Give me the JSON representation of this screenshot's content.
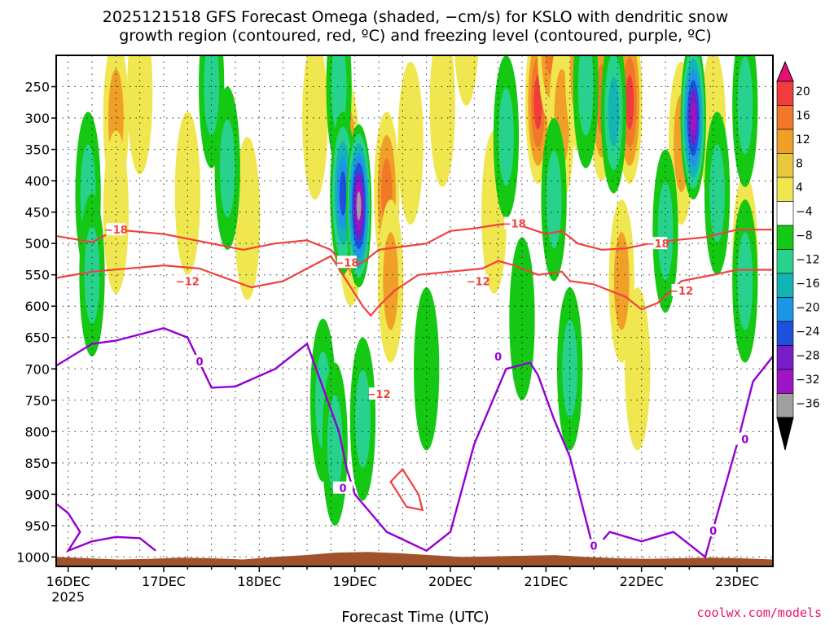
{
  "chart_data": {
    "type": "heatmap",
    "title_line1": "2025121518 GFS Forecast Omega (shaded, −cm/s) for KSLO with dendritic snow",
    "title_line2": "growth region (contoured, red, ºC) and freezing level (contoured, purple, ºC)",
    "xlabel": "Forecast Time (UTC)",
    "credit": "coolwx.com/models",
    "x_ticks": [
      {
        "label": "16DEC",
        "sub": "2025",
        "value": 0
      },
      {
        "label": "17DEC",
        "sub": "",
        "value": 24
      },
      {
        "label": "18DEC",
        "sub": "",
        "value": 48
      },
      {
        "label": "19DEC",
        "sub": "",
        "value": 72
      },
      {
        "label": "20DEC",
        "sub": "",
        "value": 96
      },
      {
        "label": "21DEC",
        "sub": "",
        "value": 120
      },
      {
        "label": "22DEC",
        "sub": "",
        "value": 144
      },
      {
        "label": "23DEC",
        "sub": "",
        "value": 168
      }
    ],
    "x_range": [
      -3,
      177
    ],
    "y_ticks": [
      "250",
      "300",
      "350",
      "400",
      "450",
      "500",
      "550",
      "600",
      "650",
      "700",
      "750",
      "800",
      "850",
      "900",
      "950",
      "1000"
    ],
    "y_range": [
      200,
      1015
    ],
    "colorbar": {
      "labels": [
        "20",
        "16",
        "12",
        "8",
        "4",
        "−4",
        "−8",
        "−12",
        "−16",
        "−20",
        "−24",
        "−28",
        "−32",
        "−36"
      ],
      "colors": [
        "#e8106e",
        "#f03c3c",
        "#f07828",
        "#f0a028",
        "#e8c83c",
        "#f0e650",
        "#ffffff",
        "#14c814",
        "#28d28c",
        "#14b4b4",
        "#1e96e6",
        "#1e50dc",
        "#781ec8",
        "#a014c8",
        "#a0a0a0",
        "#000000"
      ]
    },
    "omega_cells": [
      {
        "t": 12,
        "p": 300,
        "v": 10
      },
      {
        "t": 12,
        "p": 450,
        "v": 6
      },
      {
        "t": 18,
        "p": 260,
        "v": 6
      },
      {
        "t": 30,
        "p": 420,
        "v": 6
      },
      {
        "t": 45,
        "p": 460,
        "v": 6
      },
      {
        "t": 62,
        "p": 300,
        "v": 6
      },
      {
        "t": 70,
        "p": 370,
        "v": 14
      },
      {
        "t": 71,
        "p": 470,
        "v": 10
      },
      {
        "t": 80,
        "p": 420,
        "v": 12
      },
      {
        "t": 81,
        "p": 560,
        "v": 8
      },
      {
        "t": 86,
        "p": 340,
        "v": 6
      },
      {
        "t": 94,
        "p": 280,
        "v": 6
      },
      {
        "t": 100,
        "p": 150,
        "v": 6
      },
      {
        "t": 107,
        "p": 450,
        "v": 6
      },
      {
        "t": 118,
        "p": 275,
        "v": 18
      },
      {
        "t": 121,
        "p": 175,
        "v": 12
      },
      {
        "t": 124,
        "p": 300,
        "v": 10
      },
      {
        "t": 128,
        "p": 220,
        "v": 8
      },
      {
        "t": 134,
        "p": 270,
        "v": 12
      },
      {
        "t": 139,
        "p": 560,
        "v": 10
      },
      {
        "t": 141,
        "p": 275,
        "v": 18
      },
      {
        "t": 143,
        "p": 700,
        "v": 6
      },
      {
        "t": 150,
        "p": 480,
        "v": 8
      },
      {
        "t": 154,
        "p": 340,
        "v": 10
      },
      {
        "t": 162,
        "p": 320,
        "v": 6
      },
      {
        "t": 170,
        "p": 520,
        "v": 6
      },
      {
        "t": 5,
        "p": 420,
        "v": -8
      },
      {
        "t": 6,
        "p": 550,
        "v": -10
      },
      {
        "t": 36,
        "p": 250,
        "v": -8
      },
      {
        "t": 40,
        "p": 380,
        "v": -10
      },
      {
        "t": 64,
        "p": 750,
        "v": -10
      },
      {
        "t": 67,
        "p": 820,
        "v": -8
      },
      {
        "t": 68,
        "p": 250,
        "v": -8
      },
      {
        "t": 69,
        "p": 420,
        "v": -20
      },
      {
        "t": 73,
        "p": 440,
        "v": -34
      },
      {
        "t": 74,
        "p": 780,
        "v": -8
      },
      {
        "t": 90,
        "p": 700,
        "v": -6
      },
      {
        "t": 110,
        "p": 330,
        "v": -10
      },
      {
        "t": 114,
        "p": 620,
        "v": -6
      },
      {
        "t": 122,
        "p": 430,
        "v": -8
      },
      {
        "t": 126,
        "p": 700,
        "v": -10
      },
      {
        "t": 130,
        "p": 250,
        "v": -10
      },
      {
        "t": 137,
        "p": 290,
        "v": -14
      },
      {
        "t": 150,
        "p": 480,
        "v": -10
      },
      {
        "t": 157,
        "p": 300,
        "v": -30
      },
      {
        "t": 163,
        "p": 420,
        "v": -10
      },
      {
        "t": 170,
        "p": 280,
        "v": -8
      },
      {
        "t": 170,
        "p": 560,
        "v": -8
      }
    ],
    "dgz_minus12": {
      "label": "−12",
      "t": [
        -3,
        6,
        24,
        33,
        46,
        54,
        60,
        66,
        70,
        74,
        76,
        78,
        82,
        88,
        96,
        104,
        108,
        112,
        118,
        124,
        126,
        132,
        140,
        144,
        148,
        154,
        162,
        168,
        177
      ],
      "p": [
        555,
        545,
        535,
        540,
        570,
        560,
        540,
        520,
        560,
        600,
        615,
        600,
        575,
        550,
        545,
        540,
        528,
        535,
        550,
        545,
        560,
        565,
        585,
        605,
        595,
        560,
        550,
        542,
        542
      ]
    },
    "dgz_minus18": {
      "label": "−18",
      "t": [
        -3,
        6,
        12,
        24,
        36,
        44,
        52,
        60,
        66,
        70,
        74,
        78,
        84,
        90,
        96,
        102,
        108,
        112,
        120,
        124,
        128,
        134,
        140,
        146,
        152,
        160,
        168,
        177
      ],
      "p": [
        488,
        498,
        478,
        485,
        500,
        510,
        500,
        495,
        510,
        540,
        530,
        510,
        505,
        500,
        480,
        476,
        470,
        468,
        485,
        480,
        500,
        510,
        508,
        500,
        495,
        490,
        478,
        478
      ]
    },
    "minus12_cell": {
      "t": [
        81,
        84,
        88,
        89,
        85,
        81
      ],
      "p": [
        880,
        860,
        900,
        925,
        920,
        880
      ]
    },
    "freezing_level": {
      "label": "0",
      "t": [
        -3,
        6,
        12,
        24,
        30,
        36,
        42,
        52,
        60,
        68,
        70,
        72,
        76,
        80,
        90,
        96,
        102,
        110,
        116,
        118,
        122,
        126,
        132,
        136,
        144,
        152,
        160,
        168,
        172,
        177
      ],
      "p": [
        695,
        660,
        655,
        635,
        650,
        730,
        728,
        700,
        660,
        800,
        860,
        900,
        930,
        960,
        990,
        960,
        820,
        700,
        690,
        710,
        780,
        840,
        990,
        960,
        975,
        960,
        1000,
        820,
        720,
        680
      ]
    },
    "freezing_level_low": {
      "t": [
        -3,
        0,
        3,
        0,
        6,
        12,
        18,
        22
      ],
      "p": [
        915,
        930,
        960,
        990,
        975,
        968,
        970,
        990
      ]
    },
    "terrain_p": [
      1000,
      1002,
      1004,
      1003,
      1001,
      1002,
      1004,
      1000,
      997,
      993,
      992,
      994,
      997,
      1000,
      999,
      998,
      997,
      1000,
      1002,
      1003,
      1002,
      1001,
      1002,
      1004
    ]
  }
}
